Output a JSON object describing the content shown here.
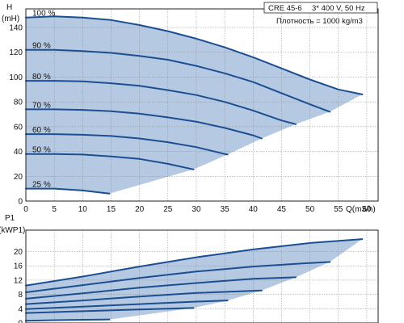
{
  "info": {
    "model": "CRE 45-6",
    "supply": "3* 400 V, 50 Hz",
    "density": "Плотность = 1000 kg/m3"
  },
  "colors": {
    "region_fill": "#b6c9e2",
    "curve": "#1b4f91",
    "grid": "#8a8a8a",
    "axis": "#222222"
  },
  "chart_data": [
    {
      "type": "line",
      "ylabel_top": "H",
      "ylabel_unit": "(mH)",
      "xlabel": "Q(m3/h)",
      "xlim": [
        0,
        62
      ],
      "ylim": [
        0,
        155
      ],
      "x_ticks": [
        "0",
        "5",
        "10",
        "15",
        "20",
        "25",
        "30",
        "35",
        "40",
        "45",
        "50",
        "55",
        "60"
      ],
      "y_ticks": [
        "0",
        "20",
        "40",
        "60",
        "80",
        "100",
        "120",
        "140"
      ],
      "grid": true,
      "series": [
        {
          "name": "100 %",
          "x": [
            0,
            5,
            10,
            15,
            20,
            25,
            30,
            35,
            40,
            45,
            50,
            55,
            59.2
          ],
          "y": [
            148,
            149,
            148,
            146,
            142,
            137,
            131,
            124,
            116,
            107,
            98,
            90,
            86
          ]
        },
        {
          "name": "90 %",
          "x": [
            0,
            5,
            10,
            15,
            20,
            25,
            30,
            35,
            40,
            45,
            50,
            53.5
          ],
          "y": [
            122,
            122,
            121,
            119.5,
            117,
            114,
            109,
            103,
            96,
            87,
            78,
            72
          ]
        },
        {
          "name": "80 %",
          "x": [
            0,
            5,
            10,
            15,
            20,
            25,
            30,
            35,
            40,
            45,
            47.5
          ],
          "y": [
            97,
            97,
            96.5,
            95,
            93,
            89.5,
            85.5,
            80,
            73,
            65,
            62
          ]
        },
        {
          "name": "70 %",
          "x": [
            0,
            5,
            10,
            15,
            20,
            25,
            30,
            35,
            40,
            41.5
          ],
          "y": [
            74,
            74,
            73.5,
            72.5,
            70.5,
            67.5,
            64,
            59,
            53,
            50.5
          ]
        },
        {
          "name": "60 %",
          "x": [
            0,
            5,
            10,
            15,
            20,
            25,
            30,
            35,
            35.5
          ],
          "y": [
            54,
            54,
            53.5,
            52.5,
            50.5,
            47.5,
            43.5,
            38,
            37.5
          ]
        },
        {
          "name": "50 %",
          "x": [
            0,
            5,
            10,
            15,
            20,
            25,
            29.5
          ],
          "y": [
            38,
            38,
            37.5,
            36,
            34,
            30,
            25.5
          ]
        },
        {
          "name": "25 %",
          "x": [
            0,
            5,
            10,
            14.7
          ],
          "y": [
            10,
            10,
            8.5,
            6
          ]
        }
      ],
      "operating_limit": {
        "x": [
          14.7,
          29.5,
          35.5,
          41.5,
          47.5,
          53.5,
          59.2
        ],
        "y": [
          6,
          25.5,
          37.5,
          50.5,
          62,
          72,
          86
        ]
      }
    },
    {
      "type": "line",
      "ylabel_top": "P1",
      "ylabel_unit": "(kWP1)",
      "xlim": [
        0,
        62
      ],
      "ylim": [
        0,
        26
      ],
      "y_ticks": [
        "0",
        "4",
        "8",
        "12",
        "16",
        "20"
      ],
      "grid": true,
      "series": [
        {
          "name": "100 %",
          "x": [
            0,
            10,
            20,
            30,
            40,
            50,
            59.2
          ],
          "y": [
            10.5,
            13,
            15.8,
            18.4,
            20.6,
            22.4,
            23.5
          ]
        },
        {
          "name": "90 %",
          "x": [
            0,
            10,
            20,
            30,
            40,
            50,
            53.5
          ],
          "y": [
            8.6,
            10.6,
            12.6,
            14.4,
            15.8,
            16.8,
            17.1
          ]
        },
        {
          "name": "80 %",
          "x": [
            0,
            10,
            20,
            30,
            40,
            47.5
          ],
          "y": [
            6.8,
            8.3,
            9.9,
            11.2,
            12.4,
            12.8
          ]
        },
        {
          "name": "70 %",
          "x": [
            0,
            10,
            20,
            30,
            41.5
          ],
          "y": [
            5.3,
            6.3,
            7.4,
            8.4,
            9.1
          ]
        },
        {
          "name": "60 %",
          "x": [
            0,
            10,
            20,
            30,
            35.5
          ],
          "y": [
            3.9,
            4.6,
            5.3,
            6.0,
            6.3
          ]
        },
        {
          "name": "50 %",
          "x": [
            0,
            10,
            20,
            29.5
          ],
          "y": [
            2.8,
            3.3,
            3.8,
            4.2
          ]
        },
        {
          "name": "25 %",
          "x": [
            0,
            5,
            10,
            14.7
          ],
          "y": [
            0.6,
            0.8,
            0.9,
            1.0
          ]
        }
      ]
    }
  ]
}
